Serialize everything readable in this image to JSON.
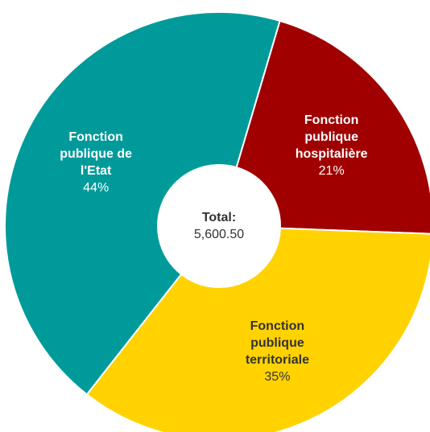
{
  "chart_data": {
    "type": "donut",
    "categories": [
      "Fonction publique hospitalière",
      "Fonction publique territoriale",
      "Fonction publique de l'Etat"
    ],
    "values": [
      21,
      35,
      44
    ],
    "value_labels": [
      "21%",
      "35%",
      "44%"
    ],
    "colors": [
      "#a00000",
      "#ffd200",
      "#009a9a"
    ],
    "label_colors": [
      "#ffffff",
      "#333333",
      "#ffffff"
    ],
    "center_title": "Total:",
    "center_value": "5,600.50"
  }
}
